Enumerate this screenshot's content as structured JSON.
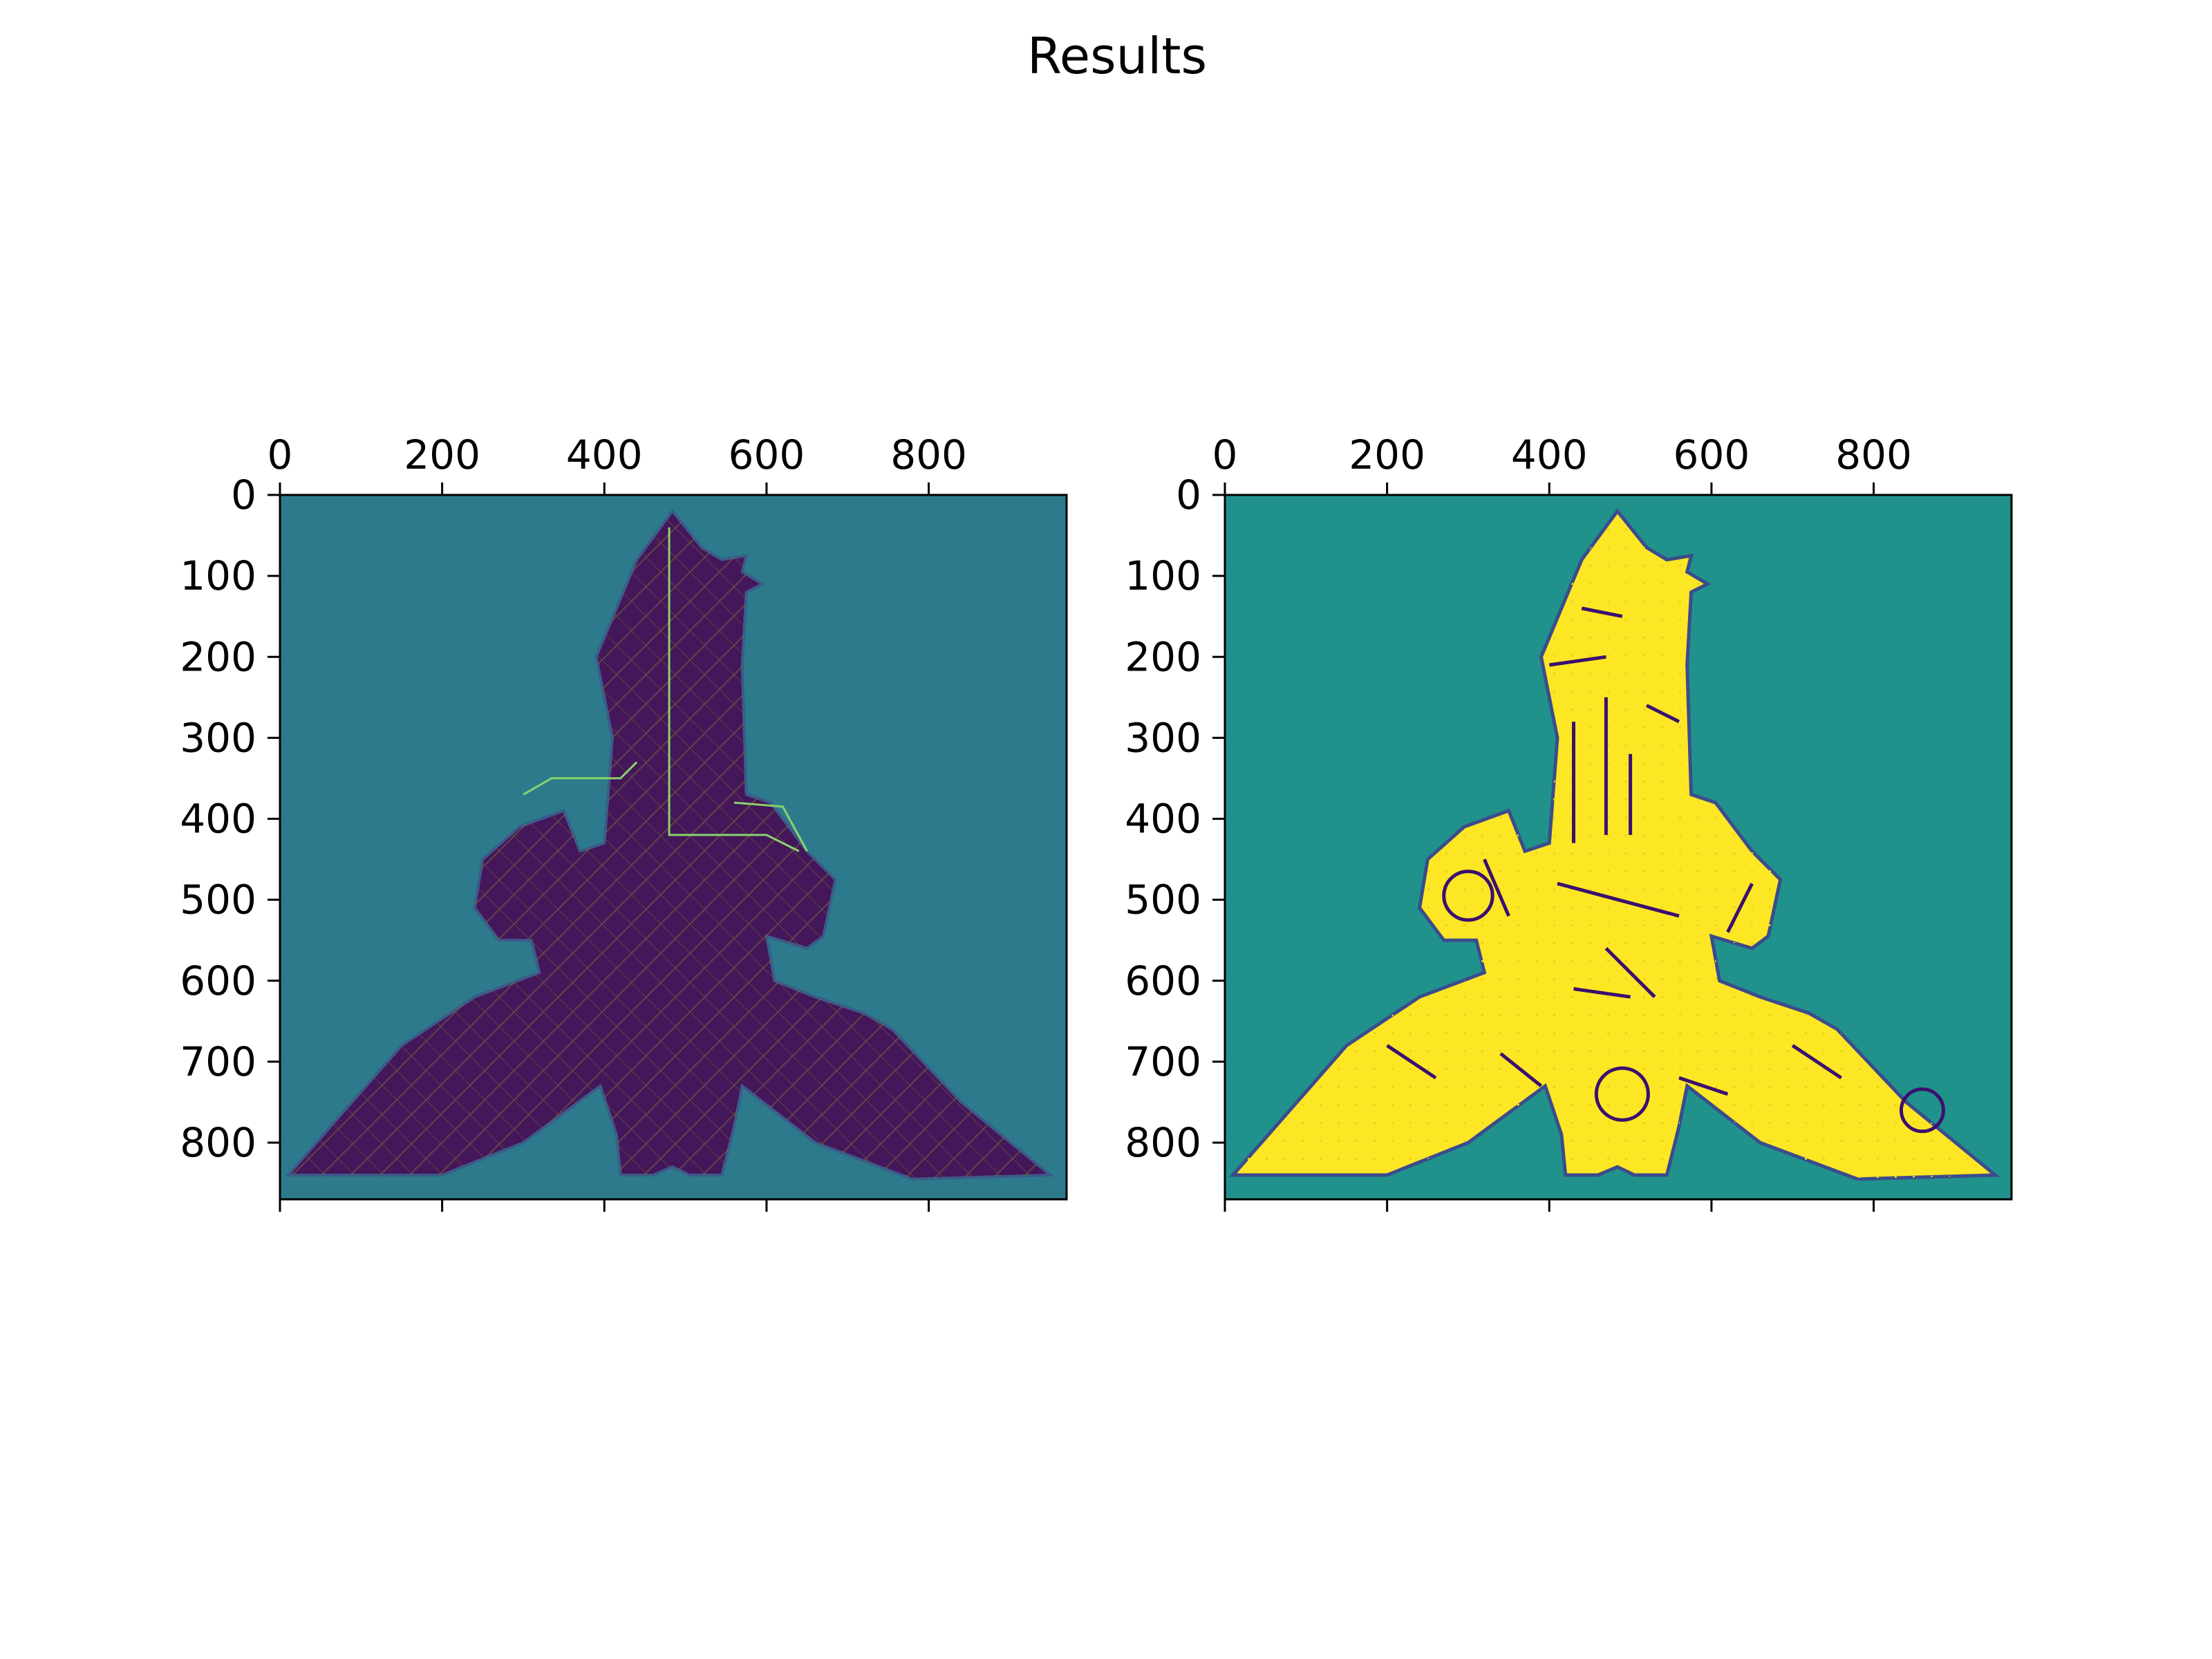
{
  "figure": {
    "title": "Results"
  },
  "chart_data": [
    {
      "type": "heatmap",
      "title": "",
      "xlabel": "",
      "ylabel": "",
      "xlim": [
        0,
        970
      ],
      "ylim": [
        870,
        0
      ],
      "x_ticks": [
        "0",
        "200",
        "400",
        "600",
        "800"
      ],
      "y_ticks": [
        "0",
        "100",
        "200",
        "300",
        "400",
        "500",
        "600",
        "700",
        "800"
      ],
      "x_axis_position": "top",
      "grid": false,
      "legend": "none",
      "colors": {
        "background": "#2c7a8c",
        "shape": "#44165a",
        "hatch": "#7a6a3c",
        "route": "#8ad36a"
      },
      "shape_outline": [
        [
          484,
          20
        ],
        [
          520,
          65
        ],
        [
          545,
          80
        ],
        [
          575,
          75
        ],
        [
          570,
          95
        ],
        [
          595,
          110
        ],
        [
          575,
          120
        ],
        [
          570,
          210
        ],
        [
          575,
          370
        ],
        [
          605,
          380
        ],
        [
          650,
          440
        ],
        [
          685,
          475
        ],
        [
          670,
          545
        ],
        [
          650,
          560
        ],
        [
          600,
          545
        ],
        [
          610,
          600
        ],
        [
          660,
          620
        ],
        [
          720,
          640
        ],
        [
          755,
          660
        ],
        [
          840,
          750
        ],
        [
          950,
          840
        ],
        [
          780,
          845
        ],
        [
          660,
          800
        ],
        [
          570,
          730
        ],
        [
          560,
          780
        ],
        [
          545,
          840
        ],
        [
          505,
          840
        ],
        [
          484,
          830
        ],
        [
          460,
          840
        ],
        [
          420,
          840
        ],
        [
          415,
          790
        ],
        [
          395,
          730
        ],
        [
          300,
          800
        ],
        [
          200,
          840
        ],
        [
          10,
          840
        ],
        [
          80,
          760
        ],
        [
          150,
          680
        ],
        [
          240,
          620
        ],
        [
          320,
          590
        ],
        [
          310,
          550
        ],
        [
          270,
          550
        ],
        [
          240,
          510
        ],
        [
          250,
          450
        ],
        [
          295,
          410
        ],
        [
          350,
          390
        ],
        [
          370,
          440
        ],
        [
          400,
          430
        ],
        [
          410,
          300
        ],
        [
          390,
          200
        ],
        [
          440,
          80
        ]
      ]
    },
    {
      "type": "heatmap",
      "title": "",
      "xlabel": "",
      "ylabel": "",
      "xlim": [
        0,
        970
      ],
      "ylim": [
        870,
        0
      ],
      "x_ticks": [
        "0",
        "200",
        "400",
        "600",
        "800"
      ],
      "y_ticks": [
        "0",
        "100",
        "200",
        "300",
        "400",
        "500",
        "600",
        "700",
        "800"
      ],
      "x_axis_position": "top",
      "grid": false,
      "legend": "none",
      "colors": {
        "background": "#21918c",
        "shape": "#fde725",
        "edge": "#3b0f70"
      },
      "shape_outline": [
        [
          484,
          20
        ],
        [
          520,
          65
        ],
        [
          545,
          80
        ],
        [
          575,
          75
        ],
        [
          570,
          95
        ],
        [
          595,
          110
        ],
        [
          575,
          120
        ],
        [
          570,
          210
        ],
        [
          575,
          370
        ],
        [
          605,
          380
        ],
        [
          650,
          440
        ],
        [
          685,
          475
        ],
        [
          670,
          545
        ],
        [
          650,
          560
        ],
        [
          600,
          545
        ],
        [
          610,
          600
        ],
        [
          660,
          620
        ],
        [
          720,
          640
        ],
        [
          755,
          660
        ],
        [
          840,
          750
        ],
        [
          950,
          840
        ],
        [
          780,
          845
        ],
        [
          660,
          800
        ],
        [
          570,
          730
        ],
        [
          560,
          780
        ],
        [
          545,
          840
        ],
        [
          505,
          840
        ],
        [
          484,
          830
        ],
        [
          460,
          840
        ],
        [
          420,
          840
        ],
        [
          415,
          790
        ],
        [
          395,
          730
        ],
        [
          300,
          800
        ],
        [
          200,
          840
        ],
        [
          10,
          840
        ],
        [
          80,
          760
        ],
        [
          150,
          680
        ],
        [
          240,
          620
        ],
        [
          320,
          590
        ],
        [
          310,
          550
        ],
        [
          270,
          550
        ],
        [
          240,
          510
        ],
        [
          250,
          450
        ],
        [
          295,
          410
        ],
        [
          350,
          390
        ],
        [
          370,
          440
        ],
        [
          400,
          430
        ],
        [
          410,
          300
        ],
        [
          390,
          200
        ],
        [
          440,
          80
        ]
      ]
    }
  ]
}
